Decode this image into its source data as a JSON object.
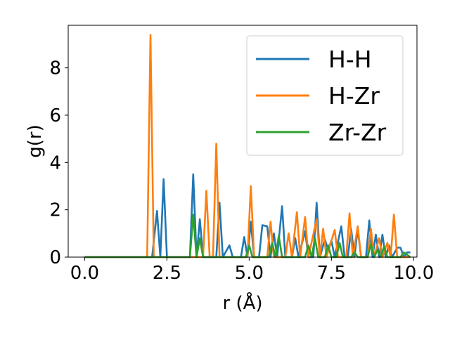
{
  "chart_data": {
    "type": "line",
    "title": "",
    "xlabel": "r (Å)",
    "ylabel": "g(r)",
    "xlim": [
      -0.5,
      10.1
    ],
    "ylim": [
      0,
      9.8
    ],
    "grid": false,
    "legend_position": "top-right",
    "xticks": [
      {
        "v": 0.0,
        "label": "0.0"
      },
      {
        "v": 2.5,
        "label": "2.5"
      },
      {
        "v": 5.0,
        "label": "5.0"
      },
      {
        "v": 7.5,
        "label": "7.5"
      },
      {
        "v": 10.0,
        "label": "10.0"
      }
    ],
    "yticks": [
      {
        "v": 0,
        "label": "0"
      },
      {
        "v": 2,
        "label": "2"
      },
      {
        "v": 4,
        "label": "4"
      },
      {
        "v": 6,
        "label": "6"
      },
      {
        "v": 8,
        "label": "8"
      }
    ],
    "series": [
      {
        "name": "H-H",
        "color": "#1f77b4",
        "points": [
          [
            0,
            0
          ],
          [
            2.05,
            0
          ],
          [
            2.2,
            1.95
          ],
          [
            2.3,
            0
          ],
          [
            2.4,
            3.3
          ],
          [
            2.5,
            0
          ],
          [
            3.2,
            0
          ],
          [
            3.3,
            3.5
          ],
          [
            3.4,
            0
          ],
          [
            3.5,
            1.6
          ],
          [
            3.6,
            0
          ],
          [
            4.0,
            0
          ],
          [
            4.1,
            2.3
          ],
          [
            4.2,
            0
          ],
          [
            4.4,
            0.5
          ],
          [
            4.5,
            0
          ],
          [
            4.75,
            0
          ],
          [
            4.85,
            0.85
          ],
          [
            4.95,
            0
          ],
          [
            5.05,
            1.5
          ],
          [
            5.15,
            0
          ],
          [
            5.3,
            0
          ],
          [
            5.4,
            1.35
          ],
          [
            5.55,
            1.3
          ],
          [
            5.65,
            0
          ],
          [
            5.75,
            1.0
          ],
          [
            5.85,
            0
          ],
          [
            6.0,
            2.15
          ],
          [
            6.1,
            0
          ],
          [
            6.3,
            0
          ],
          [
            6.4,
            0.8
          ],
          [
            6.5,
            0
          ],
          [
            6.7,
            1.1
          ],
          [
            6.8,
            0
          ],
          [
            6.95,
            0
          ],
          [
            7.05,
            2.3
          ],
          [
            7.15,
            0
          ],
          [
            7.3,
            0.75
          ],
          [
            7.4,
            0.3
          ],
          [
            7.5,
            0.7
          ],
          [
            7.6,
            0
          ],
          [
            7.8,
            1.3
          ],
          [
            7.9,
            0
          ],
          [
            8.0,
            0
          ],
          [
            8.1,
            1.2
          ],
          [
            8.2,
            0
          ],
          [
            8.3,
            1.2
          ],
          [
            8.4,
            0
          ],
          [
            8.55,
            0
          ],
          [
            8.65,
            1.55
          ],
          [
            8.75,
            0
          ],
          [
            8.85,
            0.95
          ],
          [
            8.95,
            0
          ],
          [
            9.05,
            0.95
          ],
          [
            9.15,
            0
          ],
          [
            9.25,
            0.5
          ],
          [
            9.35,
            0
          ],
          [
            9.5,
            0.4
          ],
          [
            9.6,
            0.4
          ],
          [
            9.7,
            0
          ],
          [
            9.8,
            0.2
          ],
          [
            9.9,
            0.2
          ]
        ]
      },
      {
        "name": "H-Zr",
        "color": "#ff7f0e",
        "points": [
          [
            0,
            0
          ],
          [
            1.9,
            0
          ],
          [
            2.0,
            9.4
          ],
          [
            2.1,
            0
          ],
          [
            3.6,
            0
          ],
          [
            3.7,
            2.8
          ],
          [
            3.8,
            0
          ],
          [
            3.9,
            0
          ],
          [
            4.0,
            4.8
          ],
          [
            4.1,
            0
          ],
          [
            4.95,
            0
          ],
          [
            5.05,
            3.0
          ],
          [
            5.15,
            0
          ],
          [
            5.55,
            0
          ],
          [
            5.65,
            1.5
          ],
          [
            5.75,
            0
          ],
          [
            6.1,
            0
          ],
          [
            6.2,
            1.0
          ],
          [
            6.3,
            0
          ],
          [
            6.45,
            1.9
          ],
          [
            6.55,
            0
          ],
          [
            6.7,
            1.7
          ],
          [
            6.8,
            0
          ],
          [
            7.05,
            1.6
          ],
          [
            7.15,
            0
          ],
          [
            7.25,
            1.2
          ],
          [
            7.35,
            0
          ],
          [
            7.6,
            1.15
          ],
          [
            7.7,
            0
          ],
          [
            7.95,
            0
          ],
          [
            8.05,
            1.85
          ],
          [
            8.15,
            0
          ],
          [
            8.3,
            1.3
          ],
          [
            8.4,
            0
          ],
          [
            8.6,
            0
          ],
          [
            8.7,
            1.2
          ],
          [
            8.8,
            0
          ],
          [
            8.95,
            0.8
          ],
          [
            9.05,
            0
          ],
          [
            9.2,
            0.6
          ],
          [
            9.3,
            0
          ],
          [
            9.4,
            1.8
          ],
          [
            9.5,
            0
          ],
          [
            9.9,
            0
          ]
        ]
      },
      {
        "name": "Zr-Zr",
        "color": "#2ca02c",
        "points": [
          [
            0,
            0
          ],
          [
            3.2,
            0
          ],
          [
            3.3,
            1.8
          ],
          [
            3.4,
            0
          ],
          [
            3.5,
            0.8
          ],
          [
            3.6,
            0
          ],
          [
            4.9,
            0
          ],
          [
            5.0,
            0.5
          ],
          [
            5.1,
            0
          ],
          [
            5.6,
            0
          ],
          [
            5.7,
            0.6
          ],
          [
            5.8,
            0
          ],
          [
            5.9,
            0.9
          ],
          [
            6.0,
            0
          ],
          [
            6.7,
            0
          ],
          [
            6.8,
            0.5
          ],
          [
            6.9,
            0
          ],
          [
            7.0,
            0.8
          ],
          [
            7.1,
            0
          ],
          [
            7.3,
            0
          ],
          [
            7.4,
            0.5
          ],
          [
            7.5,
            0
          ],
          [
            7.65,
            0
          ],
          [
            7.75,
            0.6
          ],
          [
            7.85,
            0
          ],
          [
            8.1,
            0
          ],
          [
            8.2,
            0.2
          ],
          [
            8.3,
            0
          ],
          [
            8.6,
            0
          ],
          [
            8.7,
            0.55
          ],
          [
            8.8,
            0
          ],
          [
            8.9,
            0.3
          ],
          [
            9.0,
            0
          ],
          [
            9.1,
            0.45
          ],
          [
            9.2,
            0
          ],
          [
            9.6,
            0
          ],
          [
            9.7,
            0.2
          ],
          [
            9.9,
            0
          ]
        ]
      }
    ]
  }
}
